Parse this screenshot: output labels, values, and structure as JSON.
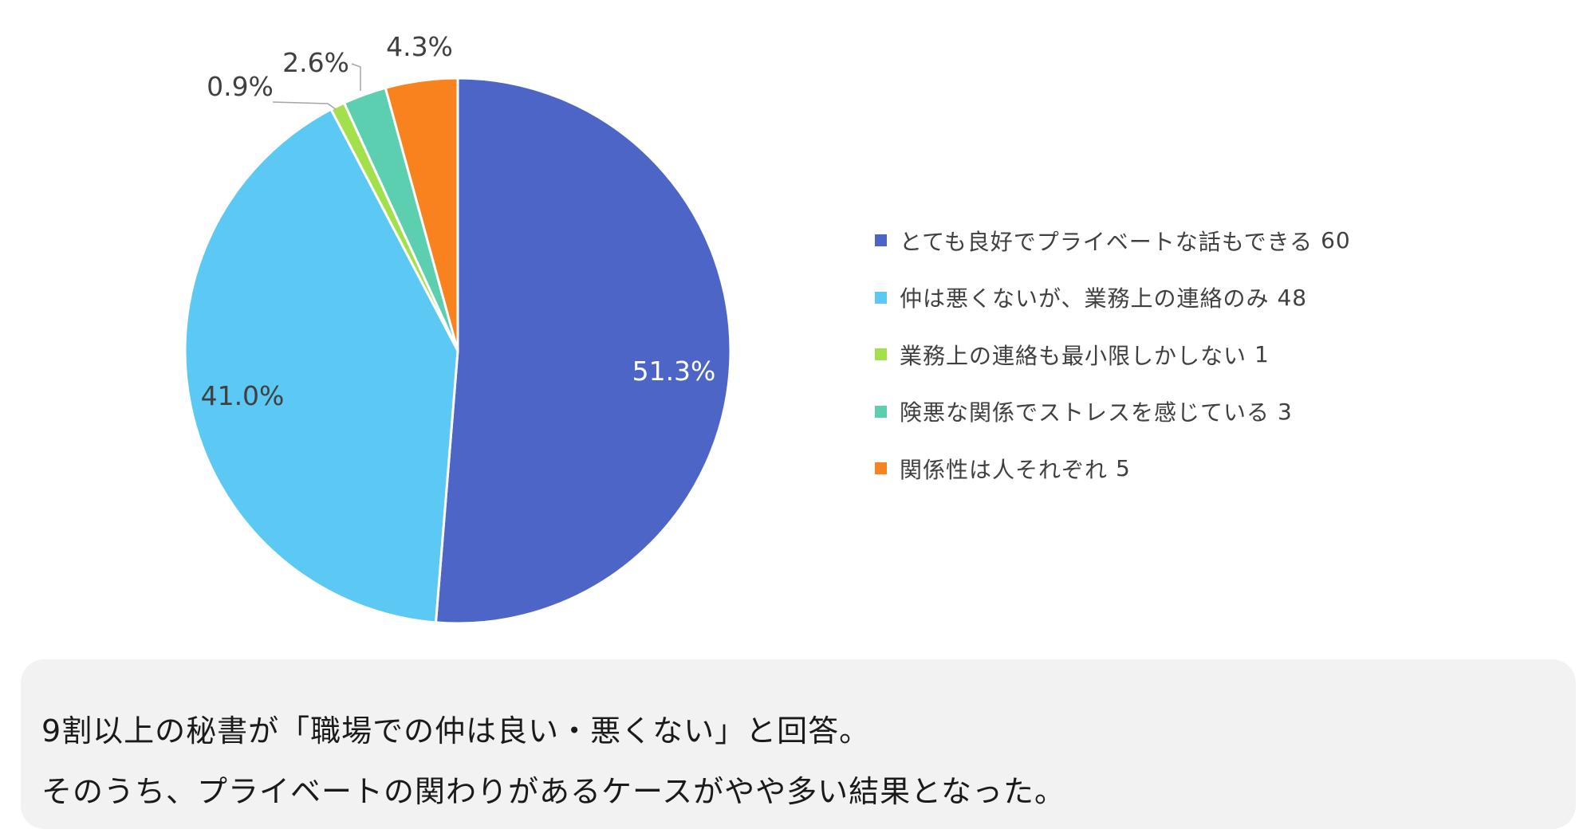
{
  "chart_data": {
    "type": "pie",
    "slices": [
      {
        "label": "とても良好でプライベートな話もできる",
        "value": 60,
        "percent_label": "51.3%",
        "color": "#4e65c8"
      },
      {
        "label": "仲は悪くないが、業務上の連絡のみ",
        "value": 48,
        "percent_label": "41.0%",
        "color": "#5bc9f3"
      },
      {
        "label": "業務上の連絡も最小限しかしない",
        "value": 1,
        "percent_label": "0.9%",
        "color": "#a3e04b"
      },
      {
        "label": "険悪な関係でストレスを感じている",
        "value": 3,
        "percent_label": "2.6%",
        "color": "#5ccfb0"
      },
      {
        "label": "関係性は人それぞれ",
        "value": 5,
        "percent_label": "4.3%",
        "color": "#f7821e"
      }
    ],
    "legend_position": "right"
  },
  "caption": {
    "line1": "9割以上の秘書が「職場での仲は良い・悪くない」と回答。",
    "line2": "そのうち、プライベートの関わりがあるケースがやや多い結果となった。"
  }
}
